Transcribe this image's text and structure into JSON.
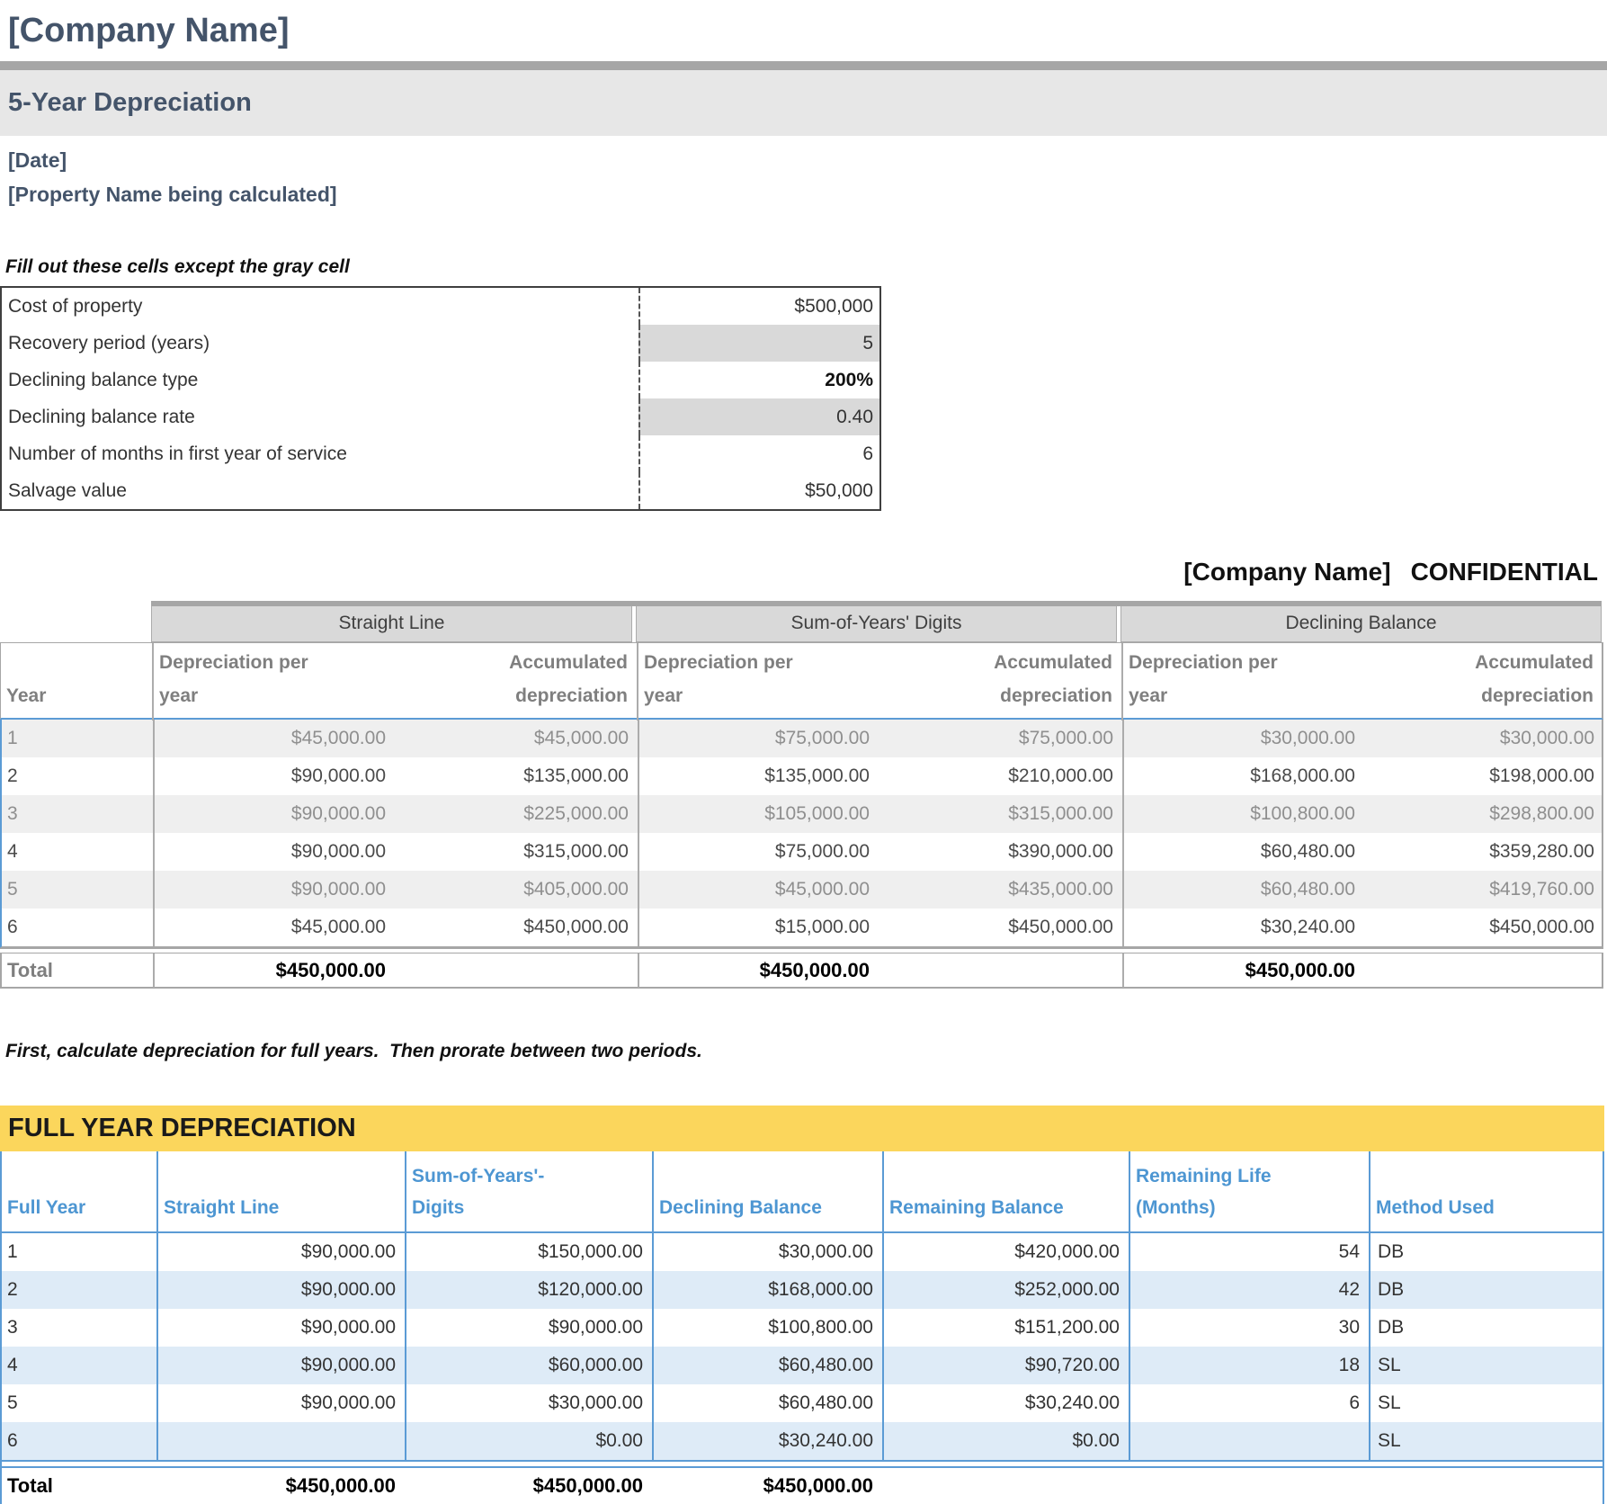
{
  "header": {
    "company_name": "[Company Name]",
    "subtitle": "5-Year Depreciation",
    "date": "[Date]",
    "property_name": "[Property Name being calculated]"
  },
  "inputs": {
    "note": "Fill out these cells except the gray cell",
    "rows": [
      {
        "label": "Cost of property",
        "value": "$500,000"
      },
      {
        "label": "Recovery period (years)",
        "value": "5"
      },
      {
        "label": "Declining balance type",
        "value": "200%"
      },
      {
        "label": "Declining balance rate",
        "value": "0.40"
      },
      {
        "label": "Number of months in first year of service",
        "value": "6"
      },
      {
        "label": "Salvage value",
        "value": "$50,000"
      }
    ]
  },
  "confidential": {
    "company": "[Company Name]",
    "label": "CONFIDENTIAL"
  },
  "dep_table": {
    "year_header": "Year",
    "groups": [
      "Straight Line",
      "Sum-of-Years' Digits",
      "Declining Balance"
    ],
    "sub_dep": "Depreciation per year",
    "sub_acc": "Accumulated depreciation",
    "rows": [
      [
        "1",
        "$45,000.00",
        "$45,000.00",
        "$75,000.00",
        "$75,000.00",
        "$30,000.00",
        "$30,000.00"
      ],
      [
        "2",
        "$90,000.00",
        "$135,000.00",
        "$135,000.00",
        "$210,000.00",
        "$168,000.00",
        "$198,000.00"
      ],
      [
        "3",
        "$90,000.00",
        "$225,000.00",
        "$105,000.00",
        "$315,000.00",
        "$100,800.00",
        "$298,800.00"
      ],
      [
        "4",
        "$90,000.00",
        "$315,000.00",
        "$75,000.00",
        "$390,000.00",
        "$60,480.00",
        "$359,280.00"
      ],
      [
        "5",
        "$90,000.00",
        "$405,000.00",
        "$45,000.00",
        "$435,000.00",
        "$60,480.00",
        "$419,760.00"
      ],
      [
        "6",
        "$45,000.00",
        "$450,000.00",
        "$15,000.00",
        "$450,000.00",
        "$30,240.00",
        "$450,000.00"
      ]
    ],
    "total_label": "Total",
    "totals": [
      "$450,000.00",
      "$450,000.00",
      "$450,000.00"
    ]
  },
  "note2": "First, calculate depreciation for full years.  Then prorate between two periods.",
  "full_year": {
    "title": "FULL YEAR DEPRECIATION",
    "headers": [
      "Full Year",
      "Straight Line",
      "Sum-of-Years'-Digits",
      "Declining Balance",
      "Remaining Balance",
      "Remaining Life (Months)",
      "Method Used"
    ],
    "rows": [
      [
        "1",
        "$90,000.00",
        "$150,000.00",
        "$30,000.00",
        "$420,000.00",
        "54",
        "DB"
      ],
      [
        "2",
        "$90,000.00",
        "$120,000.00",
        "$168,000.00",
        "$252,000.00",
        "42",
        "DB"
      ],
      [
        "3",
        "$90,000.00",
        "$90,000.00",
        "$100,800.00",
        "$151,200.00",
        "30",
        "DB"
      ],
      [
        "4",
        "$90,000.00",
        "$60,000.00",
        "$60,480.00",
        "$90,720.00",
        "18",
        "SL"
      ],
      [
        "5",
        "$90,000.00",
        "$30,000.00",
        "$60,480.00",
        "$30,240.00",
        "6",
        "SL"
      ],
      [
        "6",
        "",
        "$0.00",
        "$30,240.00",
        "$0.00",
        "",
        "SL"
      ]
    ],
    "total_label": "Total",
    "totals": [
      "$450,000.00",
      "$450,000.00",
      "$450,000.00"
    ]
  },
  "colors": {
    "accent_blue": "#5B9BD5",
    "header_blue_text": "#4D96D2",
    "band_blue": "#DEEBF7",
    "banner_yellow": "#FBD65C",
    "title_slate": "#44546A",
    "divider_gray": "#A6A6A6",
    "band_gray": "#E7E7E7",
    "input_cell_gray": "#D9D9D9",
    "row_band_gray": "#EFEFEF"
  }
}
